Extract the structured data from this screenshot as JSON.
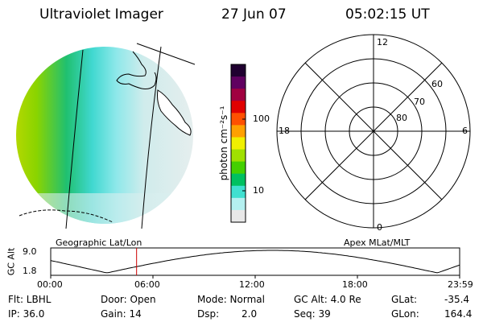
{
  "header": {
    "instrument": "Ultraviolet Imager",
    "date": "27 Jun 07",
    "time": "05:02:15 UT"
  },
  "colorbar": {
    "unit_label": "photon cm⁻²s⁻¹",
    "ticks": [
      "100",
      "10"
    ],
    "colors": [
      "#e8e8e8",
      "#b4f0f0",
      "#40e0d0",
      "#00c060",
      "#44d000",
      "#a0e000",
      "#f0f000",
      "#ffa000",
      "#ff5000",
      "#e00000",
      "#a00040",
      "#600060",
      "#200030"
    ]
  },
  "geo_panel": {
    "label": "Geographic Lat/Lon"
  },
  "polar_panel": {
    "label": "Apex MLat/MLT",
    "mlt_labels": {
      "top": "12",
      "left": "18",
      "right": "6",
      "bottom": "0"
    },
    "lat_labels": [
      "60",
      "70",
      "80"
    ]
  },
  "orbit_plot": {
    "ylabel": "GC Alt",
    "yticks": [
      "9.0",
      "1.8"
    ],
    "xticks": [
      "00:00",
      "06:00",
      "12:00",
      "18:00",
      "23:59"
    ],
    "current_time_hours": 5.04,
    "altitude_range": [
      1.8,
      9.0
    ]
  },
  "status": {
    "flt": "Flt: LBHL",
    "door": "Door: Open",
    "mode": "Mode: Normal",
    "gc_alt": "GC Alt: 4.0 Re",
    "glat_label": "GLat:",
    "glat_value": "-35.4",
    "ip": "IP: 36.0",
    "gain": "Gain: 14",
    "dsp_label": "Dsp:",
    "dsp_value": "2.0",
    "seq": "Seq: 39",
    "glon_label": "GLon:",
    "glon_value": "164.4"
  }
}
